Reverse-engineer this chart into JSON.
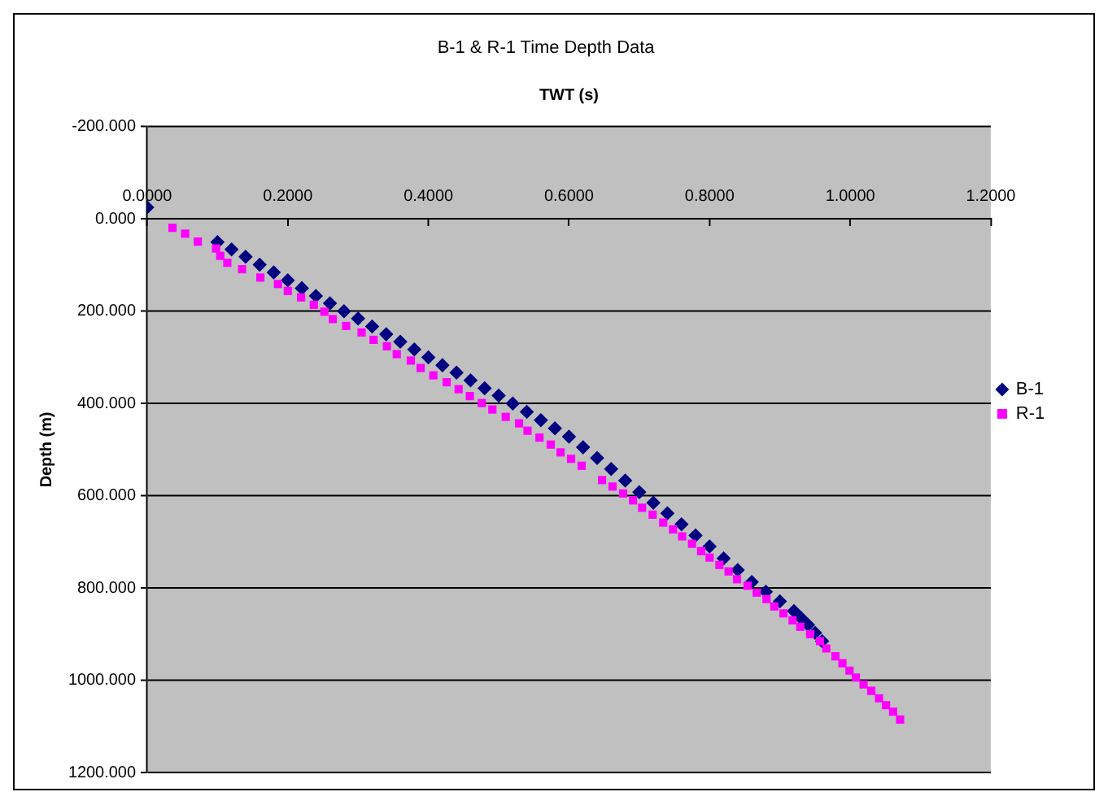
{
  "chart_data": {
    "type": "scatter",
    "title": "B-1 & R-1 Time Depth Data",
    "xlabel": "TWT (s)",
    "ylabel": "Depth (m)",
    "xlim": [
      0,
      1.2
    ],
    "xticks": [
      {
        "value": 0,
        "label": "0.0000"
      },
      {
        "value": 0.2,
        "label": "0.2000"
      },
      {
        "value": 0.4,
        "label": "0.4000"
      },
      {
        "value": 0.6,
        "label": "0.6000"
      },
      {
        "value": 0.8,
        "label": "0.8000"
      },
      {
        "value": 1,
        "label": "1.0000"
      },
      {
        "value": 1.2,
        "label": "1.2000"
      }
    ],
    "ylim": [
      1200,
      -200
    ],
    "yticks": [
      {
        "value": -200,
        "label": "-200.000"
      },
      {
        "value": 0,
        "label": "0.000"
      },
      {
        "value": 200,
        "label": "200.000"
      },
      {
        "value": 400,
        "label": "400.000"
      },
      {
        "value": 600,
        "label": "600.000"
      },
      {
        "value": 800,
        "label": "800.000"
      },
      {
        "value": 1000,
        "label": "1000.000"
      },
      {
        "value": 1200,
        "label": "1200.000"
      }
    ],
    "grid": "y",
    "legend": "right",
    "series": [
      {
        "name": "B-1",
        "color": "#000080",
        "marker": "diamond",
        "x": [
          0,
          0.1,
          0.12,
          0.14,
          0.16,
          0.18,
          0.2,
          0.22,
          0.24,
          0.26,
          0.28,
          0.3,
          0.32,
          0.34,
          0.36,
          0.38,
          0.4,
          0.42,
          0.44,
          0.46,
          0.48,
          0.5,
          0.52,
          0.54,
          0.56,
          0.58,
          0.6,
          0.62,
          0.64,
          0.66,
          0.68,
          0.7,
          0.72,
          0.74,
          0.76,
          0.78,
          0.8,
          0.82,
          0.84,
          0.86,
          0.88,
          0.9,
          0.92,
          0.93,
          0.94,
          0.95,
          0.96
        ],
        "values": [
          -25,
          50,
          66,
          82,
          99,
          116,
          133,
          150,
          167,
          183,
          200,
          216,
          233,
          250,
          266,
          283,
          300,
          317,
          333,
          350,
          367,
          383,
          400,
          418,
          436,
          454,
          472,
          495,
          518,
          542,
          567,
          592,
          615,
          638,
          662,
          686,
          710,
          736,
          761,
          787,
          808,
          829,
          850,
          865,
          880,
          897,
          915
        ]
      },
      {
        "name": "R-1",
        "color": "#ff00ff",
        "marker": "square",
        "x": [
          0.036,
          0.054,
          0.072,
          0.098,
          0.104,
          0.114,
          0.135,
          0.161,
          0.186,
          0.2,
          0.219,
          0.237,
          0.252,
          0.264,
          0.283,
          0.305,
          0.322,
          0.341,
          0.355,
          0.375,
          0.389,
          0.407,
          0.426,
          0.443,
          0.459,
          0.476,
          0.491,
          0.51,
          0.529,
          0.541,
          0.558,
          0.574,
          0.588,
          0.603,
          0.618,
          0.647,
          0.662,
          0.677,
          0.691,
          0.704,
          0.719,
          0.734,
          0.748,
          0.761,
          0.775,
          0.788,
          0.8,
          0.814,
          0.827,
          0.839,
          0.854,
          0.867,
          0.881,
          0.892,
          0.905,
          0.918,
          0.929,
          0.943,
          0.957,
          0.966,
          0.979,
          0.989,
          0.999,
          1.008,
          1.019,
          1.03,
          1.041,
          1.051,
          1.061,
          1.071
        ],
        "values": [
          19,
          32,
          49,
          64,
          80,
          95,
          109,
          127,
          141,
          156,
          170,
          186,
          201,
          217,
          232,
          246,
          262,
          276,
          293,
          307,
          323,
          339,
          354,
          369,
          384,
          399,
          413,
          429,
          443,
          459,
          474,
          489,
          506,
          520,
          535,
          566,
          580,
          595,
          610,
          626,
          641,
          658,
          673,
          688,
          704,
          720,
          734,
          750,
          764,
          781,
          795,
          810,
          824,
          840,
          855,
          870,
          884,
          900,
          915,
          931,
          948,
          963,
          979,
          994,
          1009,
          1023,
          1039,
          1054,
          1068,
          1085
        ]
      }
    ]
  }
}
